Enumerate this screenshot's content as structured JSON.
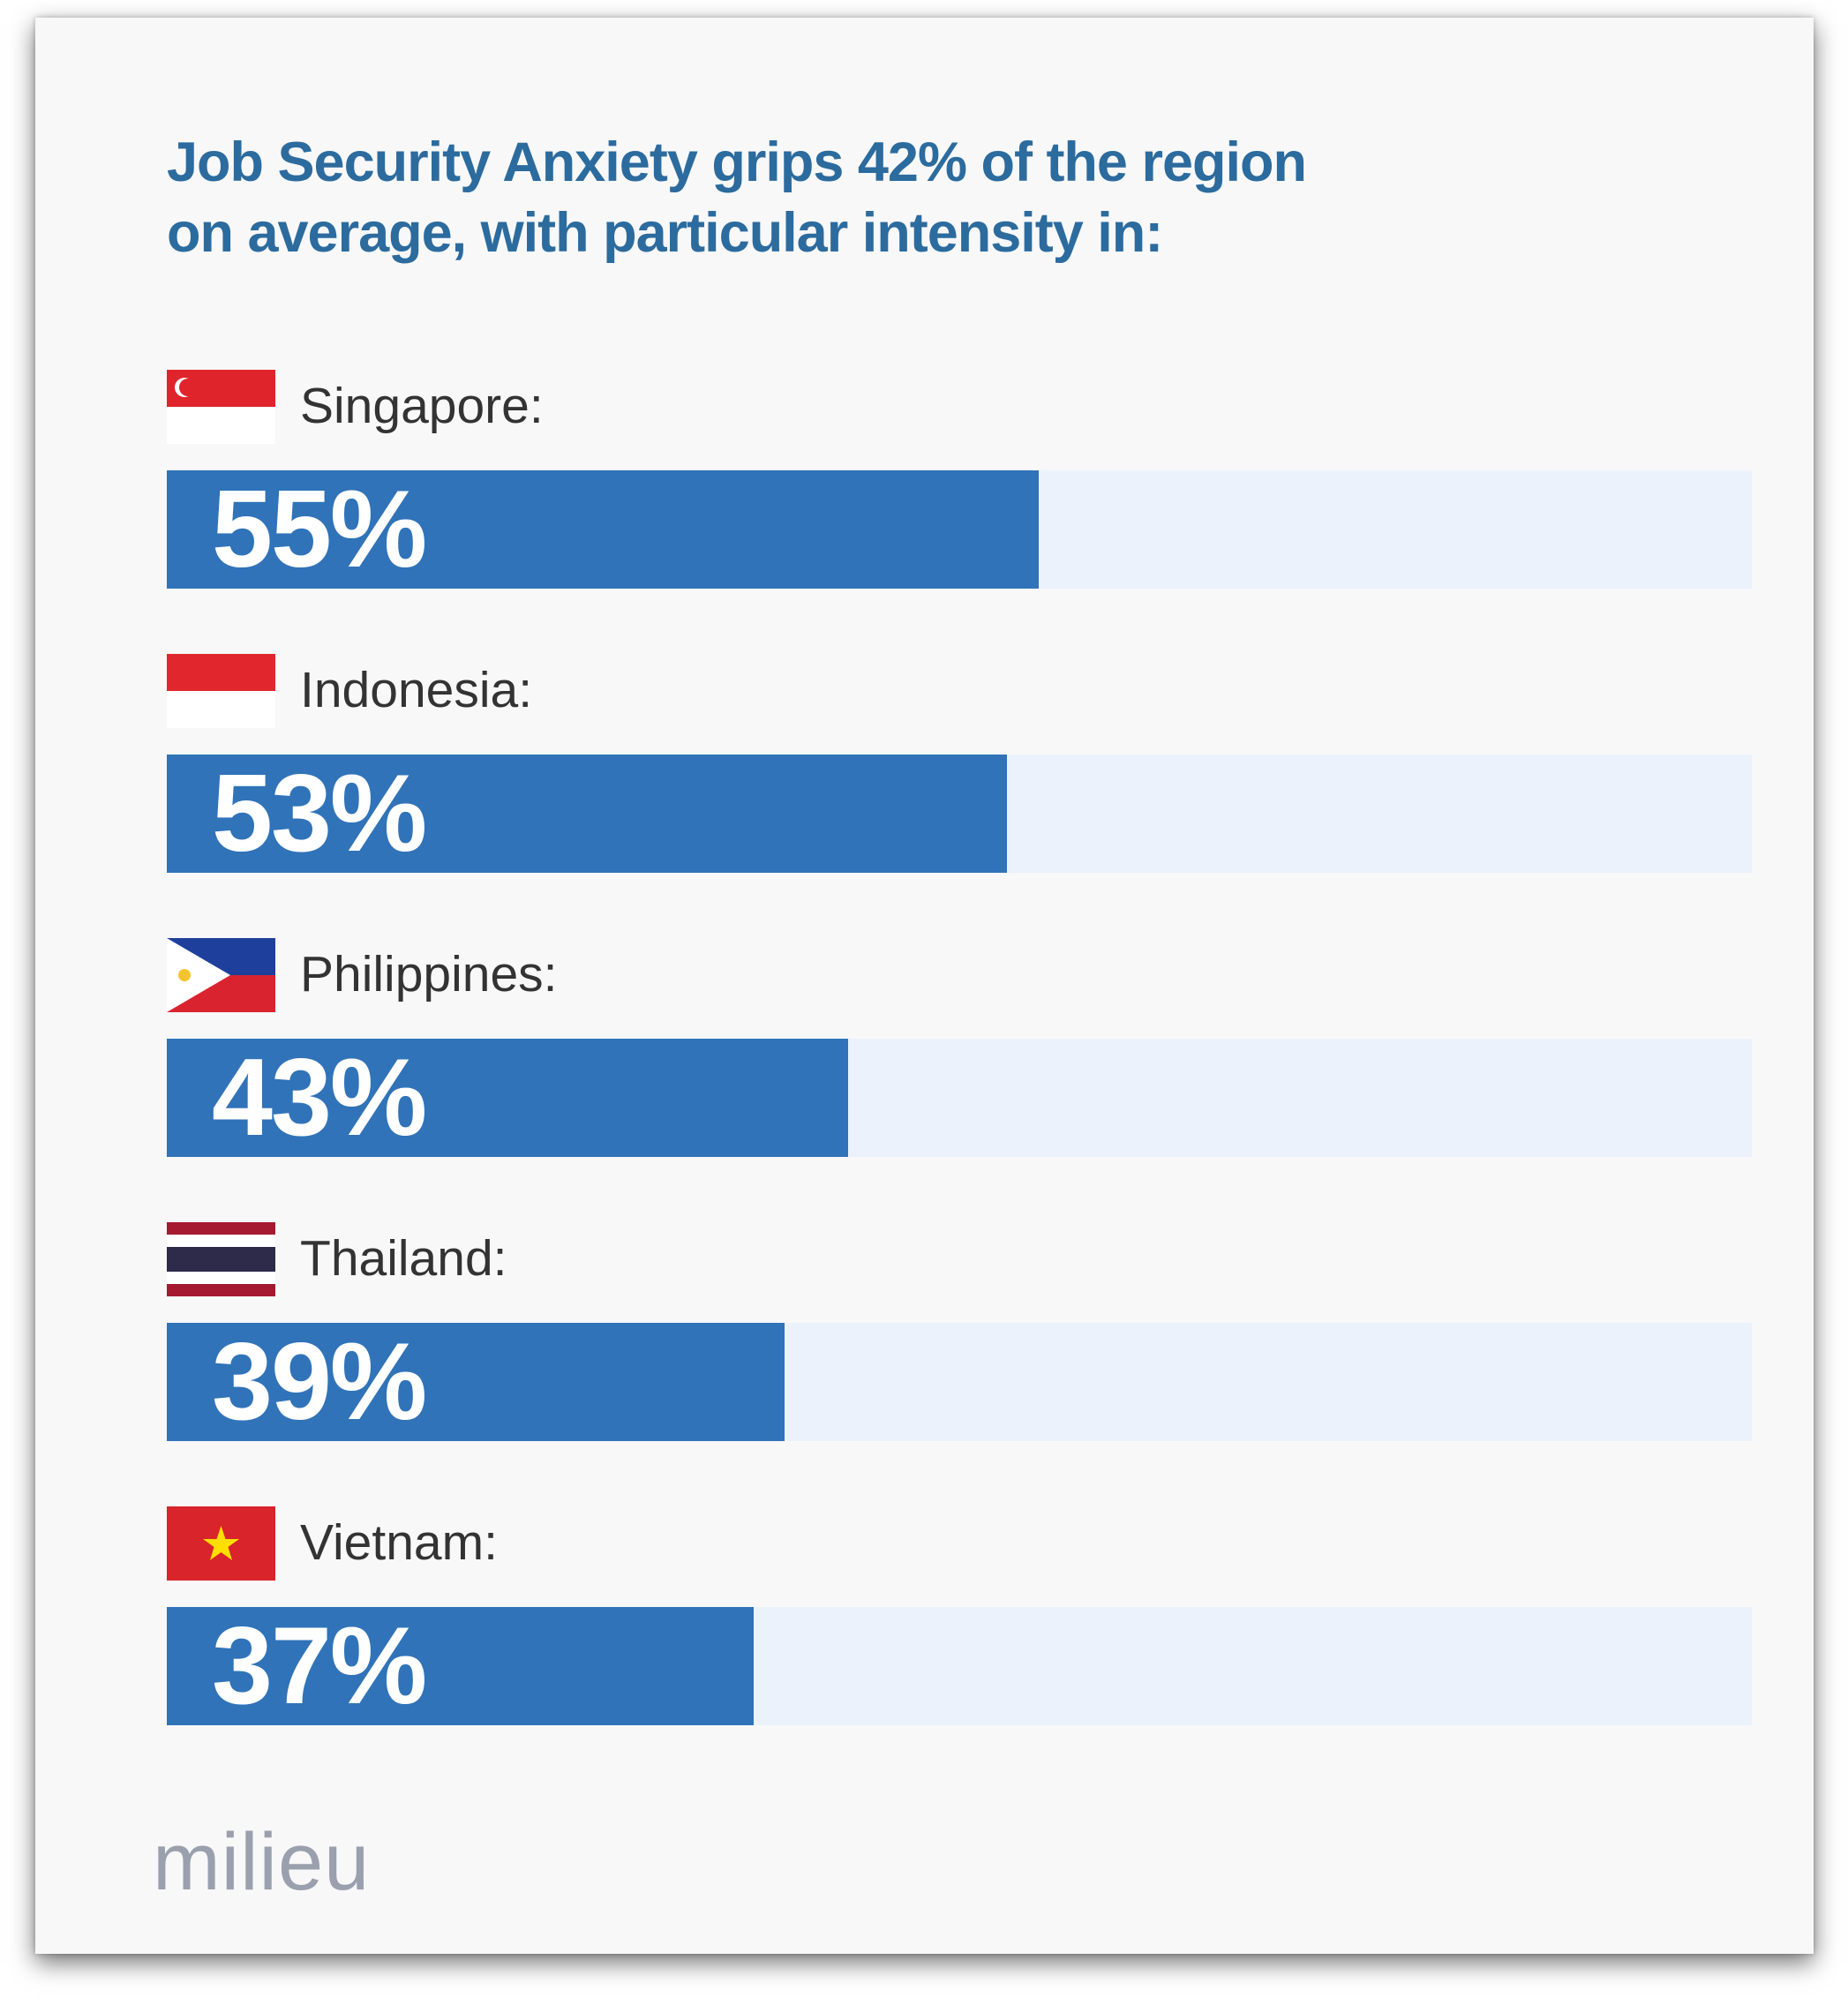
{
  "chart_data": {
    "type": "bar",
    "orientation": "horizontal",
    "title": "Job Security Anxiety grips 42% of the region on average, with particular intensity in:",
    "categories": [
      "Singapore:",
      "Indonesia:",
      "Philippines:",
      "Thailand:",
      "Vietnam:"
    ],
    "flags": [
      "singapore-flag",
      "indonesia-flag",
      "philippines-flag",
      "thailand-flag",
      "vietnam-flag"
    ],
    "values": [
      55,
      53,
      43,
      39,
      37
    ],
    "value_labels": [
      "55%",
      "53%",
      "43%",
      "39%",
      "37%"
    ],
    "xlim": [
      0,
      100
    ],
    "grid": false,
    "colors": {
      "bar": "#3073b8",
      "track": "#ebf2fb",
      "title": "#2c6b9e"
    }
  },
  "brand": {
    "logo": "milieu"
  }
}
